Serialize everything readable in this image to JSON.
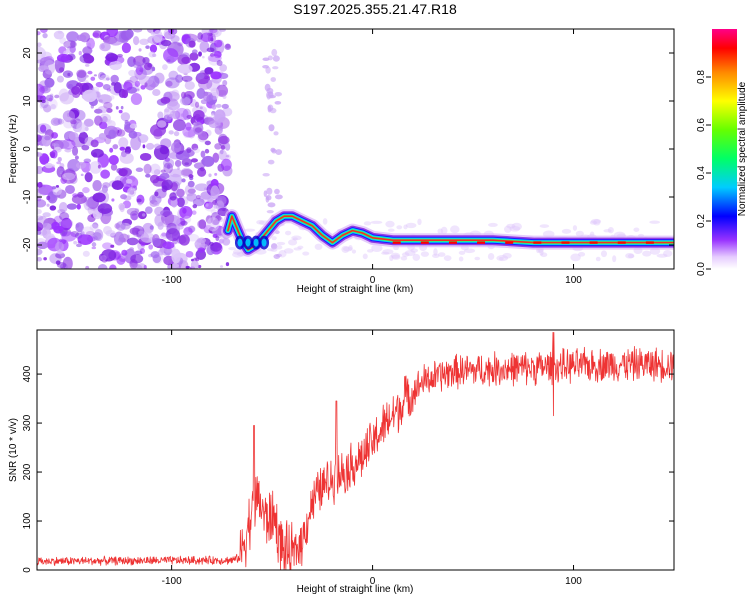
{
  "title": "S197.2025.355.21.47.R18",
  "chart_data": [
    {
      "type": "heatmap",
      "xlabel": "Height of straight line (km)",
      "ylabel": "Frequency (Hz)",
      "xlim": [
        -167,
        150
      ],
      "ylim": [
        -25,
        25
      ],
      "xticks": [
        -100,
        0,
        100
      ],
      "yticks": [
        -20,
        -10,
        0,
        10,
        20
      ],
      "colorbar": {
        "label": "Normalized spectral amplitude",
        "range": [
          0,
          1
        ],
        "ticks": [
          "0.0",
          "0.2",
          "0.4",
          "0.6",
          "0.8"
        ]
      },
      "noise_cutoff_km": -72,
      "signal_track": [
        {
          "x": -72,
          "freq": -17
        },
        {
          "x": -70,
          "freq": -14
        },
        {
          "x": -68,
          "freq": -16
        },
        {
          "x": -65,
          "freq": -19
        },
        {
          "x": -62,
          "freq": -21
        },
        {
          "x": -58,
          "freq": -20
        },
        {
          "x": -54,
          "freq": -18
        },
        {
          "x": -48,
          "freq": -15
        },
        {
          "x": -44,
          "freq": -14
        },
        {
          "x": -40,
          "freq": -14
        },
        {
          "x": -35,
          "freq": -15
        },
        {
          "x": -30,
          "freq": -16
        },
        {
          "x": -25,
          "freq": -18
        },
        {
          "x": -20,
          "freq": -19.5
        },
        {
          "x": -15,
          "freq": -18
        },
        {
          "x": -10,
          "freq": -17
        },
        {
          "x": -5,
          "freq": -17.5
        },
        {
          "x": 0,
          "freq": -18.5
        },
        {
          "x": 10,
          "freq": -19
        },
        {
          "x": 30,
          "freq": -19
        },
        {
          "x": 60,
          "freq": -19
        },
        {
          "x": 80,
          "freq": -19.5
        },
        {
          "x": 100,
          "freq": -19.5
        },
        {
          "x": 120,
          "freq": -19.5
        },
        {
          "x": 150,
          "freq": -19.5
        }
      ]
    },
    {
      "type": "line",
      "xlabel": "Height of straight line (km)",
      "ylabel": "SNR (10 * v/v)",
      "xlim": [
        -167,
        150
      ],
      "ylim": [
        0,
        490
      ],
      "xticks": [
        -100,
        0,
        100
      ],
      "yticks": [
        0,
        100,
        200,
        300,
        400
      ],
      "color": "#ee3333",
      "envelope": [
        {
          "x": -167,
          "snr": 18
        },
        {
          "x": -70,
          "snr": 20
        },
        {
          "x": -66,
          "snr": 25
        },
        {
          "x": -62,
          "snr": 90
        },
        {
          "x": -57,
          "snr": 150
        },
        {
          "x": -53,
          "snr": 100
        },
        {
          "x": -49,
          "snr": 110
        },
        {
          "x": -45,
          "snr": 40
        },
        {
          "x": -40,
          "snr": 30
        },
        {
          "x": -35,
          "snr": 60
        },
        {
          "x": -30,
          "snr": 140
        },
        {
          "x": -25,
          "snr": 170
        },
        {
          "x": -15,
          "snr": 200
        },
        {
          "x": -5,
          "snr": 230
        },
        {
          "x": 5,
          "snr": 290
        },
        {
          "x": 15,
          "snr": 340
        },
        {
          "x": 25,
          "snr": 385
        },
        {
          "x": 40,
          "snr": 405
        },
        {
          "x": 60,
          "snr": 410
        },
        {
          "x": 90,
          "snr": 415
        },
        {
          "x": 120,
          "snr": 420
        },
        {
          "x": 150,
          "snr": 420
        }
      ],
      "spikes": [
        {
          "x": -59,
          "snr": 295
        },
        {
          "x": -18,
          "snr": 345
        },
        {
          "x": 16,
          "snr": 395
        },
        {
          "x": 90,
          "snr": 485
        }
      ],
      "dips": [
        {
          "x": 90,
          "snr": 315
        }
      ]
    }
  ]
}
